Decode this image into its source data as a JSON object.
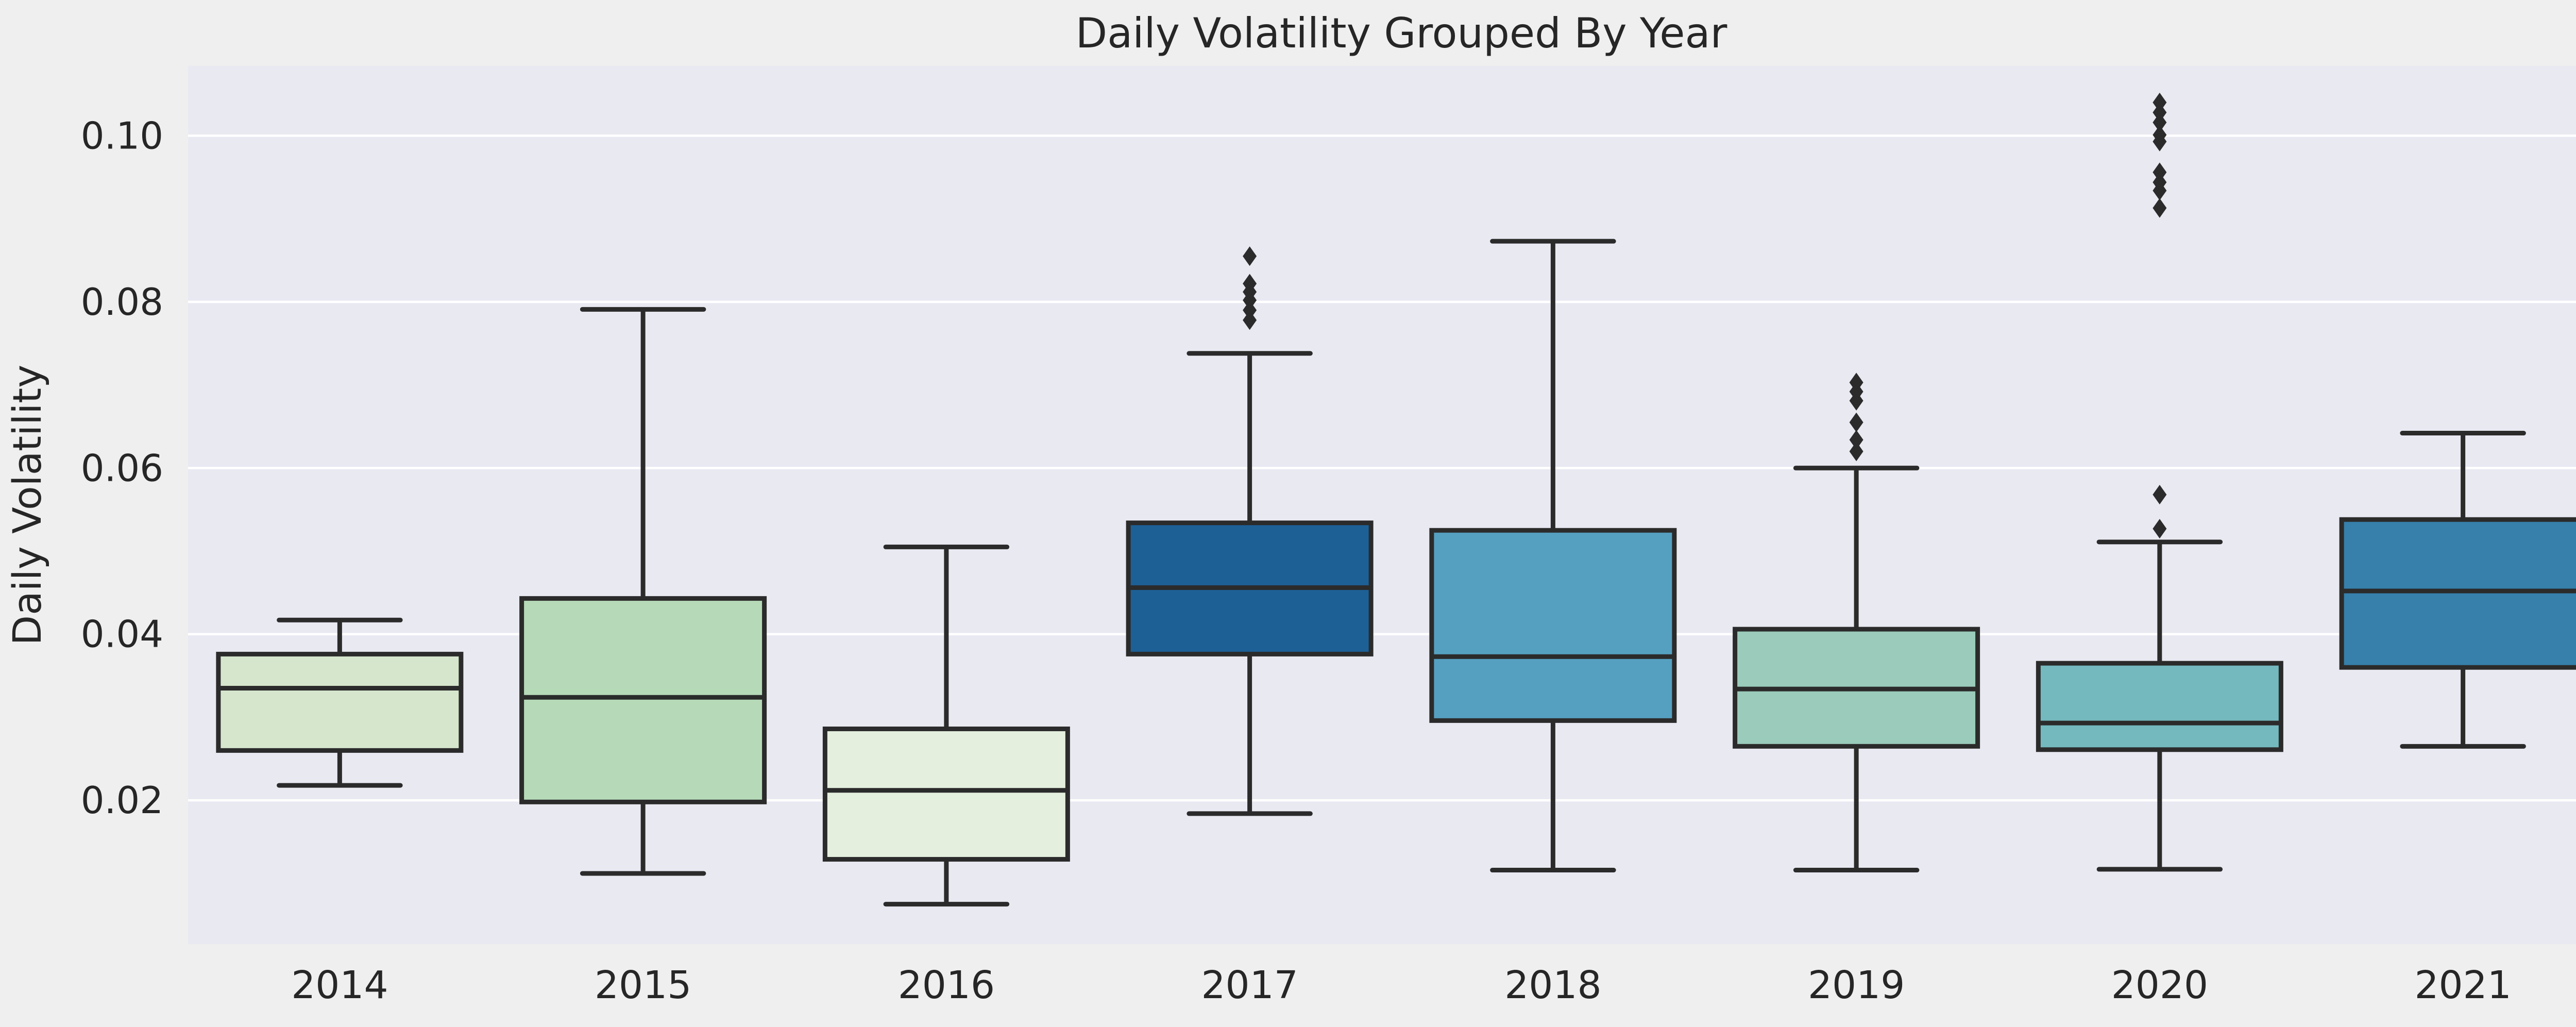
{
  "title": "Daily Volatility Grouped By Year",
  "y_axis_label": "Daily Volatility",
  "style": {
    "figure_bg": "#efefef",
    "axes_bg": "#e9e9f2",
    "grid_color": "#ffffff",
    "line_color": "#2b2b2b",
    "text_color": "#262626"
  },
  "chart_data": {
    "type": "boxplot",
    "title": "Daily Volatility Grouped By Year",
    "xlabel": "",
    "ylabel": "Daily Volatility",
    "categories": [
      "2014",
      "2015",
      "2016",
      "2017",
      "2018",
      "2019",
      "2020",
      "2021"
    ],
    "yticks": [
      0.02,
      0.04,
      0.06,
      0.08,
      0.1
    ],
    "ytick_labels": [
      "0.02",
      "0.04",
      "0.06",
      "0.08",
      "0.10"
    ],
    "ylim": [
      0.0027,
      0.1084
    ],
    "grid": true,
    "legend": false,
    "series": [
      {
        "category": "2014",
        "whisker_low": 0.0218,
        "q1": 0.026,
        "median": 0.0335,
        "q3": 0.0376,
        "whisker_high": 0.0417,
        "outliers": [],
        "color": "#d5e6cc"
      },
      {
        "category": "2015",
        "whisker_low": 0.0112,
        "q1": 0.0198,
        "median": 0.0324,
        "q3": 0.0443,
        "whisker_high": 0.0791,
        "outliers": [],
        "color": "#b6dab8"
      },
      {
        "category": "2016",
        "whisker_low": 0.0075,
        "q1": 0.0129,
        "median": 0.0212,
        "q3": 0.0286,
        "whisker_high": 0.0505,
        "outliers": [],
        "color": "#e4efde"
      },
      {
        "category": "2017",
        "whisker_low": 0.0184,
        "q1": 0.0376,
        "median": 0.0456,
        "q3": 0.0534,
        "whisker_high": 0.0738,
        "outliers": [
          0.0855,
          0.0822,
          0.0812,
          0.0802,
          0.079,
          0.0778
        ],
        "color": "#1d6096"
      },
      {
        "category": "2018",
        "whisker_low": 0.0116,
        "q1": 0.0296,
        "median": 0.0373,
        "q3": 0.0525,
        "whisker_high": 0.0873,
        "outliers": [],
        "color": "#55a0c1"
      },
      {
        "category": "2019",
        "whisker_low": 0.0116,
        "q1": 0.0265,
        "median": 0.0334,
        "q3": 0.0406,
        "whisker_high": 0.06,
        "outliers": [
          0.0703,
          0.0692,
          0.0681,
          0.0655,
          0.0634,
          0.062
        ],
        "color": "#9acbbb"
      },
      {
        "category": "2020",
        "whisker_low": 0.0117,
        "q1": 0.0261,
        "median": 0.0293,
        "q3": 0.0365,
        "whisker_high": 0.0511,
        "outliers": [
          0.104,
          0.1028,
          0.1016,
          0.1001,
          0.0993,
          0.0956,
          0.0944,
          0.0934,
          0.0913,
          0.0568,
          0.0527
        ],
        "color": "#73b9be"
      },
      {
        "category": "2021",
        "whisker_low": 0.0265,
        "q1": 0.036,
        "median": 0.0452,
        "q3": 0.0538,
        "whisker_high": 0.0642,
        "outliers": [],
        "color": "#3680ab"
      }
    ]
  }
}
